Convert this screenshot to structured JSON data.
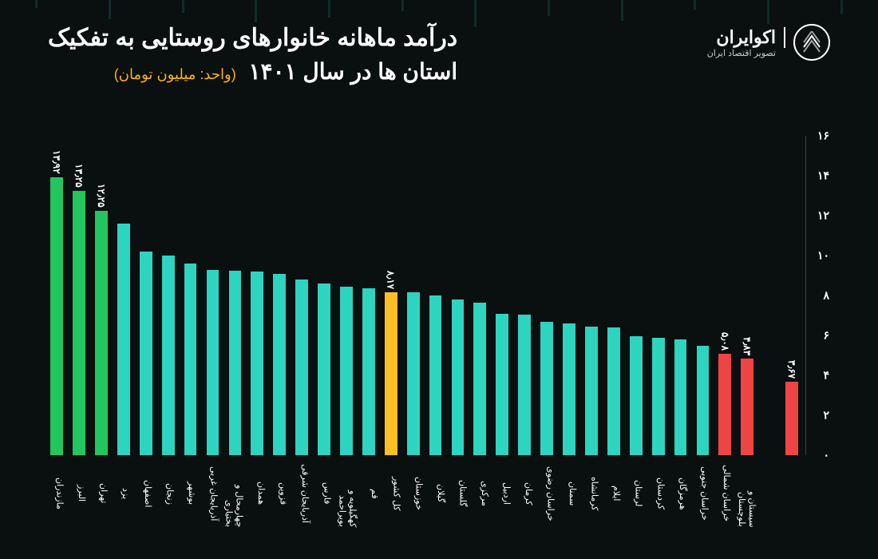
{
  "brand": {
    "name": "اکوایران",
    "tagline": "تصویر اقتصاد ایران"
  },
  "title_line1": "درآمد ماهانه خانوارهای روستایی به تفکیک",
  "title_line2": "استان ها در سال ۱۴۰۱",
  "unit": "(واحد: میلیون تومان)",
  "chart": {
    "type": "bar",
    "ylim": [
      0,
      16
    ],
    "ytick_step": 2,
    "yticks": [
      "۰",
      "۲",
      "۴",
      "۶",
      "۸",
      "۱۰",
      "۱۲",
      "۱۴",
      "۱۶"
    ],
    "background_color": "#0a0f0f",
    "colors": {
      "default": "#2dd4bf",
      "top": "#22c55e",
      "highlight": "#fbbf24",
      "bottom": "#ef4444",
      "text": "#ffffff"
    },
    "bars": [
      {
        "label": "مازندران",
        "value": 13.92,
        "disp": "۱۳٫۹۲",
        "c": "top",
        "show": true
      },
      {
        "label": "البرز",
        "value": 13.25,
        "disp": "۱۳٫۲۵",
        "c": "top",
        "show": true
      },
      {
        "label": "تهران",
        "value": 12.25,
        "disp": "۱۲٫۲۵",
        "c": "top",
        "show": true
      },
      {
        "label": "یزد",
        "value": 11.6,
        "disp": "",
        "c": "default",
        "show": false
      },
      {
        "label": "اصفهان",
        "value": 10.2,
        "disp": "",
        "c": "default",
        "show": false
      },
      {
        "label": "زنجان",
        "value": 10.0,
        "disp": "",
        "c": "default",
        "show": false
      },
      {
        "label": "بوشهر",
        "value": 9.6,
        "disp": "",
        "c": "default",
        "show": false
      },
      {
        "label": "آذربایجان غربی",
        "value": 9.3,
        "disp": "",
        "c": "default",
        "show": false
      },
      {
        "label": "چهارمحال و بختیاری",
        "value": 9.25,
        "disp": "",
        "c": "default",
        "show": false
      },
      {
        "label": "همدان",
        "value": 9.2,
        "disp": "",
        "c": "default",
        "show": false
      },
      {
        "label": "قزوین",
        "value": 9.1,
        "disp": "",
        "c": "default",
        "show": false
      },
      {
        "label": "آذربایجان شرقی",
        "value": 8.8,
        "disp": "",
        "c": "default",
        "show": false
      },
      {
        "label": "فارس",
        "value": 8.6,
        "disp": "",
        "c": "default",
        "show": false
      },
      {
        "label": "کهگیلویه و بویراحمد",
        "value": 8.45,
        "disp": "",
        "c": "default",
        "show": false
      },
      {
        "label": "قم",
        "value": 8.35,
        "disp": "",
        "c": "default",
        "show": false
      },
      {
        "label": "کل کشور",
        "value": 8.17,
        "disp": "۸٫۱۷",
        "c": "highlight",
        "show": true
      },
      {
        "label": "خوزستان",
        "value": 8.15,
        "disp": "",
        "c": "default",
        "show": false
      },
      {
        "label": "گیلان",
        "value": 8.0,
        "disp": "",
        "c": "default",
        "show": false
      },
      {
        "label": "گلستان",
        "value": 7.8,
        "disp": "",
        "c": "default",
        "show": false
      },
      {
        "label": "مرکزی",
        "value": 7.65,
        "disp": "",
        "c": "default",
        "show": false
      },
      {
        "label": "اردبیل",
        "value": 7.1,
        "disp": "",
        "c": "default",
        "show": false
      },
      {
        "label": "کرمان",
        "value": 7.05,
        "disp": "",
        "c": "default",
        "show": false
      },
      {
        "label": "خراسان رضوی",
        "value": 6.7,
        "disp": "",
        "c": "default",
        "show": false
      },
      {
        "label": "سمنان",
        "value": 6.6,
        "disp": "",
        "c": "default",
        "show": false
      },
      {
        "label": "کرمانشاه",
        "value": 6.45,
        "disp": "",
        "c": "default",
        "show": false
      },
      {
        "label": "ایلام",
        "value": 6.4,
        "disp": "",
        "c": "default",
        "show": false
      },
      {
        "label": "لرستان",
        "value": 5.95,
        "disp": "",
        "c": "default",
        "show": false
      },
      {
        "label": "کردستان",
        "value": 5.9,
        "disp": "",
        "c": "default",
        "show": false
      },
      {
        "label": "هرمزگان",
        "value": 5.8,
        "disp": "",
        "c": "default",
        "show": false
      },
      {
        "label": "خراسان جنوبی",
        "value": 5.5,
        "disp": "",
        "c": "default",
        "show": false
      },
      {
        "label": "خراسان شمالی",
        "value": 5.08,
        "disp": "۵٫۰۸",
        "c": "bottom",
        "show": true
      },
      {
        "label": "سیستان و بلوچستان",
        "value": 4.83,
        "disp": "۴٫۸۳",
        "c": "bottom",
        "show": true
      },
      {
        "label": "",
        "value": 0,
        "disp": "",
        "c": "default",
        "show": false,
        "spacer": true
      },
      {
        "label": "",
        "value": 3.67,
        "disp": "۳٫۶۷",
        "c": "bottom",
        "show": true,
        "nolabel": true
      }
    ]
  }
}
